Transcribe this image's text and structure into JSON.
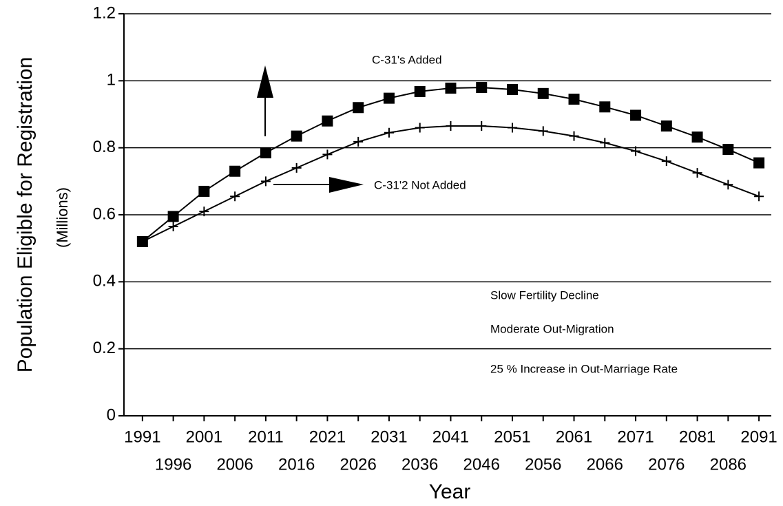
{
  "chart_data": {
    "type": "line",
    "x": [
      1991,
      1996,
      2001,
      2006,
      2011,
      2016,
      2021,
      2026,
      2031,
      2036,
      2041,
      2046,
      2051,
      2056,
      2061,
      2066,
      2071,
      2076,
      2081,
      2086,
      2091
    ],
    "xticks": [
      1991,
      1996,
      2001,
      2006,
      2011,
      2016,
      2021,
      2026,
      2031,
      2036,
      2041,
      2046,
      2051,
      2056,
      2061,
      2066,
      2071,
      2076,
      2081,
      2086,
      2091
    ],
    "xlim": [
      1988,
      2093
    ],
    "ylim": [
      0,
      1.2
    ],
    "yticks": [
      0,
      0.2,
      0.4,
      0.6,
      0.8,
      1,
      1.2
    ],
    "grid": true,
    "x_label": "Year",
    "y_label": "Population Eligible for Registration",
    "y_label_unit": "(Millions)",
    "series": [
      {
        "name": "C-31's Added",
        "color": "#000000",
        "marker": "square",
        "values": [
          0.52,
          0.595,
          0.67,
          0.73,
          0.785,
          0.835,
          0.88,
          0.92,
          0.948,
          0.968,
          0.978,
          0.98,
          0.974,
          0.962,
          0.945,
          0.922,
          0.897,
          0.865,
          0.832,
          0.795,
          0.755
        ]
      },
      {
        "name": "C-31'2 Not Added",
        "color": "#000000",
        "marker": "plus",
        "values": [
          0.52,
          0.565,
          0.61,
          0.655,
          0.7,
          0.74,
          0.78,
          0.818,
          0.845,
          0.86,
          0.865,
          0.865,
          0.86,
          0.85,
          0.835,
          0.815,
          0.79,
          0.76,
          0.725,
          0.69,
          0.655
        ]
      }
    ],
    "annotations": [
      "Slow Fertility Decline",
      "Moderate Out-Migration",
      "25 % Increase in Out-Marriage Rate"
    ]
  }
}
